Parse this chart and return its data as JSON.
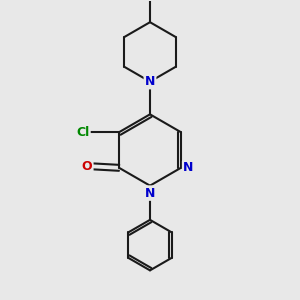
{
  "background_color": "#e8e8e8",
  "bond_color": "#1a1a1a",
  "nitrogen_color": "#0000cc",
  "oxygen_color": "#cc0000",
  "chlorine_color": "#008800",
  "line_width": 1.5,
  "label_fontsize": 9,
  "figsize": [
    3.0,
    3.0
  ],
  "dpi": 100,
  "xlim": [
    1.0,
    9.0
  ],
  "ylim": [
    0.5,
    10.5
  ]
}
